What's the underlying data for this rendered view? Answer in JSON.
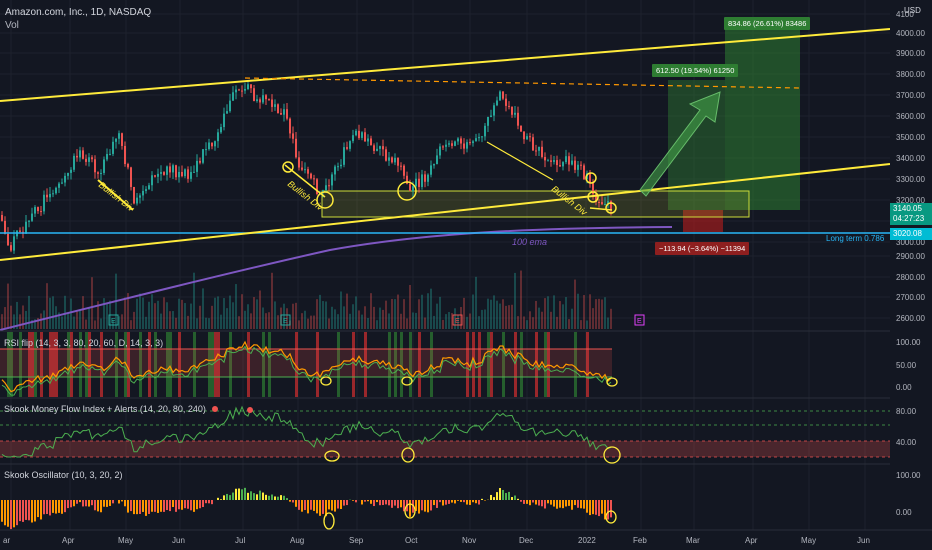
{
  "header": {
    "symbol": "Amazon.com, Inc., 1D, NASDAQ",
    "volume_label": "Vol",
    "currency": "USD"
  },
  "price_axis": {
    "labels": [
      "4100",
      "4000.00",
      "3900.00",
      "3800.00",
      "3700.00",
      "3600.00",
      "3500.00",
      "3400.00",
      "3300.00",
      "3200.00",
      "3100.00",
      "3000.00",
      "2900.00",
      "2800.00",
      "2700.00",
      "2600.00"
    ],
    "last_price": "3140.05",
    "countdown": "04:27:23",
    "level_price": "3020.08",
    "last_price_color": "#089981",
    "level_color": "#00bcd4"
  },
  "time_axis": {
    "labels": [
      "ar",
      "Apr",
      "May",
      "Jun",
      "Jul",
      "Aug",
      "Sep",
      "Oct",
      "Nov",
      "Dec",
      "2022",
      "Feb",
      "Mar",
      "Apr",
      "May",
      "Jun"
    ]
  },
  "annotations": {
    "bullish_div_1": "Bullish Div",
    "bullish_div_2": "Bullish Div",
    "bullish_div_3": "Bullish Div",
    "ema_label": "100 ema",
    "long_term_label": "Long term 0.786",
    "target_1": "612.50 (19.54%) 61250",
    "target_2": "834.86 (26.61%) 83486",
    "stop": "−113.94 (−3.64%) −11394",
    "earnings_marker": "E",
    "earnings_marker_red": "E"
  },
  "colors": {
    "trendline": "#ffeb3b",
    "dashed_line": "#ff9800",
    "ema": "#7e57c2",
    "long_term": "#29b6f6",
    "up": "#26a69a",
    "down": "#ef5350",
    "target_box": "#2e7d32",
    "stop_box": "#b71c1c",
    "zone_box": "#cddc39"
  },
  "indicators": {
    "rsi": {
      "title": "RSI flip (14, 3, 3, 80, 20, 60, D, 14, 3, 3)",
      "axis": [
        "100.00",
        "50.00",
        "0.00"
      ]
    },
    "mfi": {
      "title": "Skook Money Flow Index + Alerts (14, 20, 80, 240)",
      "axis": [
        "80.00",
        "40.00"
      ]
    },
    "osc": {
      "title": "Skook Oscillator (10, 3, 20, 2)",
      "axis": [
        "100.00",
        "0.00"
      ]
    }
  }
}
